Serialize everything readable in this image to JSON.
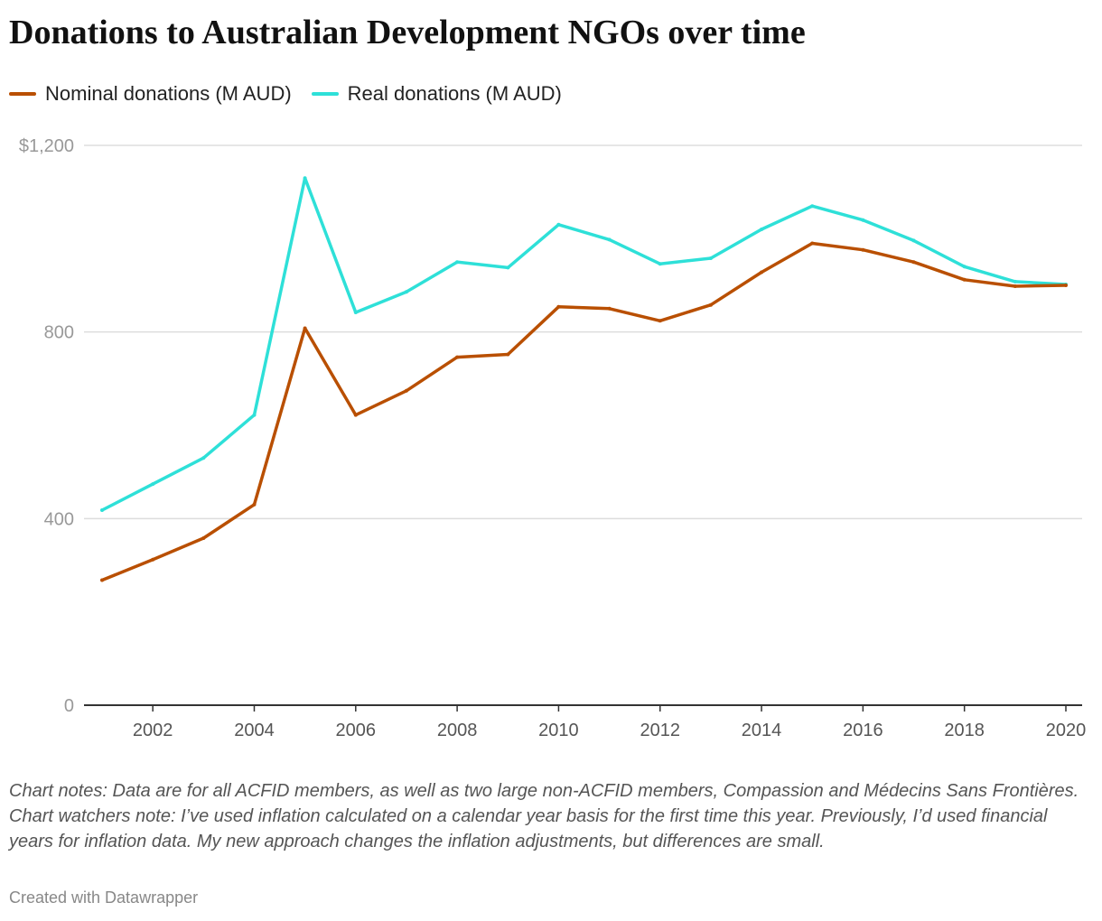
{
  "chart_data": {
    "type": "line",
    "title": "Donations to Australian Development NGOs over time",
    "xlabel": "",
    "ylabel": "",
    "x": [
      2001,
      2002,
      2003,
      2004,
      2005,
      2006,
      2007,
      2008,
      2009,
      2010,
      2011,
      2012,
      2013,
      2014,
      2015,
      2016,
      2017,
      2018,
      2019,
      2020
    ],
    "series": [
      {
        "name": "Nominal donations (M AUD)",
        "color": "#b94f00",
        "values": [
          268,
          312,
          358,
          430,
          808,
          622,
          674,
          746,
          752,
          854,
          850,
          824,
          858,
          928,
          990,
          976,
          950,
          912,
          898,
          900
        ]
      },
      {
        "name": "Real donations (M AUD)",
        "color": "#2ee0d8",
        "values": [
          418,
          474,
          530,
          622,
          1130,
          842,
          886,
          950,
          938,
          1030,
          998,
          946,
          958,
          1020,
          1070,
          1040,
          996,
          940,
          908,
          902
        ]
      }
    ],
    "xlim": [
      2001,
      2020
    ],
    "ylim": [
      0,
      1200
    ],
    "y_ticks": [
      {
        "value": 0,
        "label": "0"
      },
      {
        "value": 400,
        "label": "400"
      },
      {
        "value": 800,
        "label": "800"
      },
      {
        "value": 1200,
        "label": "$1,200"
      }
    ],
    "x_ticks": [
      {
        "value": 2002,
        "label": "2002"
      },
      {
        "value": 2004,
        "label": "2004"
      },
      {
        "value": 2006,
        "label": "2006"
      },
      {
        "value": 2008,
        "label": "2008"
      },
      {
        "value": 2010,
        "label": "2010"
      },
      {
        "value": 2012,
        "label": "2012"
      },
      {
        "value": 2014,
        "label": "2014"
      },
      {
        "value": 2016,
        "label": "2016"
      },
      {
        "value": 2018,
        "label": "2018"
      },
      {
        "value": 2020,
        "label": "2020"
      }
    ],
    "grid": true,
    "legend_position": "top-left"
  },
  "notes": "Chart notes: Data are for all ACFID members, as well as two large non-ACFID members, Compassion and Médecins Sans Frontières. Chart watchers note: I’ve used inflation calculated on a calendar year basis for the first time this year. Previously, I’d used financial years for inflation data. My new approach changes the inflation adjustments, but differences are small.",
  "credit": "Created with Datawrapper",
  "colors": {
    "gridline": "#dddddd",
    "axis": "#333333",
    "tick_label": "#999999",
    "x_tick_label": "#555555"
  }
}
